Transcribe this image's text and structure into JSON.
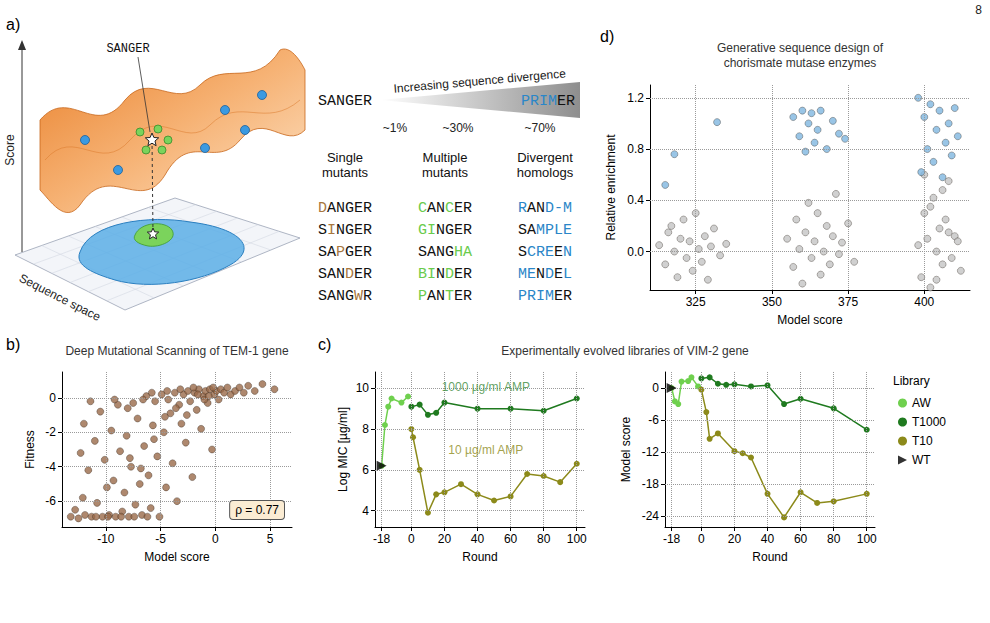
{
  "page_number": "8",
  "panel_a": {
    "panel_label": "a)",
    "landscape": {
      "pointer_label": "SANGER",
      "axis_label": "Score",
      "plane_label": "Sequence space"
    },
    "divergence": {
      "start": "SANGER",
      "title": "Increasing sequence divergence",
      "end": [
        {
          "text": "PRIM",
          "color": "#2a86c8"
        },
        {
          "text": "ER"
        }
      ],
      "marks": [
        "~1%",
        "~30%",
        "~70%"
      ]
    },
    "columns": [
      {
        "title": "Single mutants",
        "words": [
          [
            {
              "text": "D",
              "color": "#a8773e"
            },
            {
              "text": "ANGER"
            }
          ],
          [
            {
              "text": "S"
            },
            {
              "text": "I",
              "color": "#a8773e"
            },
            {
              "text": "NGER"
            }
          ],
          [
            {
              "text": "SA"
            },
            {
              "text": "P",
              "color": "#a8773e"
            },
            {
              "text": "GER"
            }
          ],
          [
            {
              "text": "SAN"
            },
            {
              "text": "D",
              "color": "#a8773e"
            },
            {
              "text": "ER"
            }
          ],
          [
            {
              "text": "SANG"
            },
            {
              "text": "W",
              "color": "#a8773e"
            },
            {
              "text": "R"
            }
          ]
        ]
      },
      {
        "title": "Multiple mutants",
        "words": [
          [
            {
              "text": "C",
              "color": "#6acb4c"
            },
            {
              "text": "AN"
            },
            {
              "text": "C",
              "color": "#6acb4c"
            },
            {
              "text": "ER"
            }
          ],
          [
            {
              "text": "GI",
              "color": "#6acb4c"
            },
            {
              "text": "NGER"
            }
          ],
          [
            {
              "text": "SANG"
            },
            {
              "text": "HA",
              "color": "#6acb4c"
            }
          ],
          [
            {
              "text": "BI",
              "color": "#6acb4c"
            },
            {
              "text": "N"
            },
            {
              "text": "D",
              "color": "#6acb4c"
            },
            {
              "text": "ER"
            }
          ],
          [
            {
              "text": "P",
              "color": "#6acb4c"
            },
            {
              "text": "AN"
            },
            {
              "text": "T",
              "color": "#6acb4c"
            },
            {
              "text": "ER"
            }
          ]
        ]
      },
      {
        "title": "Divergent homologs",
        "words": [
          [
            {
              "text": "R",
              "color": "#2a86c8"
            },
            {
              "text": "AN"
            },
            {
              "text": "D-M",
              "color": "#2a86c8"
            }
          ],
          [
            {
              "text": "SA"
            },
            {
              "text": "MPLE",
              "color": "#2a86c8"
            }
          ],
          [
            {
              "text": "S"
            },
            {
              "text": "CRE",
              "color": "#2a86c8"
            },
            {
              "text": "E"
            },
            {
              "text": "N",
              "color": "#2a86c8"
            }
          ],
          [
            {
              "text": "ME",
              "color": "#2a86c8"
            },
            {
              "text": "N"
            },
            {
              "text": "D",
              "color": "#2a86c8"
            },
            {
              "text": "E"
            },
            {
              "text": "L",
              "color": "#2a86c8"
            }
          ],
          [
            {
              "text": "PRIM",
              "color": "#2a86c8"
            },
            {
              "text": "ER"
            }
          ]
        ]
      }
    ]
  },
  "chart_data": [
    {
      "panel_label": "b)",
      "type": "scatter",
      "title": "Deep Mutational Scanning of TEM-1 gene",
      "xlabel": "Model score",
      "ylabel": "Fitness",
      "xlim": [
        -14,
        7
      ],
      "ylim": [
        -7.5,
        1.5
      ],
      "xticks": [
        -10,
        -5,
        0,
        5
      ],
      "yticks": [
        -6,
        -4,
        -2,
        0
      ],
      "grid": true,
      "color": "#9a6a4a",
      "annotation": "ρ = 0.77",
      "x": [
        -13.2,
        -12.8,
        -12.5,
        -12.1,
        -11.9,
        -11.6,
        -11.3,
        -11.0,
        -10.8,
        -10.5,
        -10.3,
        -10.1,
        -9.9,
        -9.7,
        -9.5,
        -9.3,
        -9.1,
        -8.9,
        -8.7,
        -8.5,
        -8.3,
        -8.1,
        -7.9,
        -7.7,
        -7.5,
        -7.3,
        -7.1,
        -6.9,
        -6.7,
        -6.5,
        -6.3,
        -6.1,
        -5.9,
        -5.7,
        -5.5,
        -5.3,
        -5.1,
        -4.9,
        -4.7,
        -4.5,
        -4.3,
        -4.1,
        -3.9,
        -3.7,
        -3.5,
        -3.3,
        -3.1,
        -2.9,
        -2.7,
        -2.5,
        -2.3,
        -2.1,
        -1.9,
        -1.7,
        -1.5,
        -1.3,
        -1.1,
        -0.9,
        -0.7,
        -0.5,
        -0.3,
        -0.1,
        0.1,
        0.3,
        0.5,
        0.8,
        1.1,
        1.4,
        1.8,
        2.2,
        2.6,
        3.0,
        3.6,
        4.3,
        5.4,
        -12.0,
        -11.4,
        -9.8,
        -8.6,
        -7.4,
        -6.2,
        -10.9,
        -12.3,
        -9.2,
        -8.0,
        -6.6,
        -5.8,
        -4.4,
        -3.2,
        -2.0,
        -1.0,
        -0.2,
        -7.8,
        -6.8,
        -5.6,
        -4.6,
        -3.6,
        -2.6,
        -1.6,
        -0.6
      ],
      "values": [
        -6.9,
        -6.5,
        -7.0,
        -5.8,
        -6.8,
        -4.2,
        -6.9,
        -2.5,
        -6.1,
        -0.8,
        -6.9,
        -3.6,
        -5.2,
        -6.8,
        -1.9,
        -4.8,
        -6.9,
        -0.4,
        -3.1,
        -6.6,
        -5.5,
        -2.2,
        -6.9,
        -4.0,
        -0.3,
        -6.2,
        -1.2,
        -5.0,
        -6.8,
        -2.8,
        0.1,
        -4.5,
        -6.4,
        -1.6,
        -0.2,
        -3.4,
        -6.9,
        0.2,
        -2.0,
        -5.2,
        -0.1,
        -0.9,
        -3.8,
        0.3,
        -6.0,
        -0.4,
        -1.5,
        0.2,
        -2.6,
        0.4,
        -0.2,
        -4.6,
        0.3,
        -0.7,
        0.5,
        -1.8,
        0.1,
        0.4,
        -0.3,
        0.5,
        -3.0,
        0.2,
        0.4,
        -0.1,
        0.5,
        0.3,
        0.6,
        0.2,
        0.4,
        0.6,
        0.3,
        0.7,
        0.4,
        0.8,
        0.5,
        -1.5,
        -0.2,
        -6.9,
        -6.9,
        -6.9,
        -6.9,
        -6.9,
        -3.2,
        -0.1,
        -0.6,
        -0.1,
        0.3,
        0.4,
        0.5,
        0.6,
        -0.1,
        0.6,
        -3.5,
        -4.1,
        -2.4,
        -1.1,
        -0.6,
        -1.0,
        0.2,
        0.1
      ]
    },
    {
      "panel_label": "c)",
      "type": "line",
      "title": "Experimentally evolved libraries of VIM-2 gene",
      "legend": "right",
      "legend_title": "Library",
      "grid": true,
      "plots": [
        {
          "xlabel": "Round",
          "ylabel": "Log MIC [µg/ml]",
          "xlim": [
            -22,
            105
          ],
          "ylim": [
            3.2,
            10.8
          ],
          "xticks": [
            -18,
            0,
            20,
            40,
            60,
            80,
            100
          ],
          "yticks": [
            4,
            6,
            8,
            10
          ],
          "annotations": [
            {
              "text": "1000 µg/ml AMP",
              "x": 45,
              "y": 10.05,
              "color": "#3a8a3a"
            },
            {
              "text": "10 µg/ml AMP",
              "x": 45,
              "y": 7.0,
              "color": "#8c8a1a"
            }
          ],
          "series": [
            {
              "name": "AW",
              "color": "#6fd04e",
              "marker": "circle",
              "x": [
                -18,
                -16,
                -14,
                -12,
                -6,
                -2
              ],
              "values": [
                6.2,
                8.2,
                9.1,
                9.5,
                9.3,
                9.6
              ]
            },
            {
              "name": "T1000",
              "color": "#1f7a1f",
              "marker": "circle",
              "x": [
                0,
                5,
                10,
                15,
                20,
                40,
                60,
                80,
                100
              ],
              "values": [
                9.1,
                9.2,
                8.7,
                8.8,
                9.3,
                9.0,
                9.0,
                8.9,
                9.5
              ]
            },
            {
              "name": "T10",
              "color": "#8c8a1a",
              "marker": "circle",
              "x": [
                0,
                1,
                5,
                10,
                15,
                20,
                30,
                40,
                50,
                60,
                70,
                80,
                90,
                100
              ],
              "values": [
                8.0,
                7.6,
                6.0,
                3.9,
                4.8,
                4.9,
                5.3,
                4.8,
                4.5,
                4.7,
                5.8,
                5.7,
                5.4,
                6.3
              ]
            },
            {
              "name": "WT",
              "type": "scatter",
              "color": "#000000",
              "marker": "triangle-right",
              "x": [
                -18
              ],
              "values": [
                6.2
              ]
            }
          ]
        },
        {
          "xlabel": "Round",
          "ylabel": "Model score",
          "xlim": [
            -22,
            105
          ],
          "ylim": [
            -26,
            3
          ],
          "xticks": [
            -18,
            0,
            20,
            40,
            60,
            80,
            100
          ],
          "yticks": [
            -24,
            -18,
            -12,
            -6,
            0
          ],
          "series": [
            {
              "name": "AW",
              "color": "#6fd04e",
              "marker": "circle",
              "x": [
                -18,
                -16,
                -14,
                -12,
                -8,
                -6,
                -2
              ],
              "values": [
                0,
                -2.5,
                -3.0,
                1.2,
                1.3,
                2.0,
                0.3
              ]
            },
            {
              "name": "T1000",
              "color": "#1f7a1f",
              "marker": "circle",
              "x": [
                0,
                5,
                10,
                15,
                20,
                30,
                40,
                50,
                60,
                80,
                100
              ],
              "values": [
                1.8,
                2.0,
                0.8,
                0.6,
                0.7,
                0.3,
                0.5,
                -3.0,
                -2.0,
                -3.8,
                -7.8
              ]
            },
            {
              "name": "T10",
              "color": "#8c8a1a",
              "marker": "circle",
              "x": [
                0,
                3,
                5,
                10,
                20,
                25,
                30,
                40,
                50,
                60,
                70,
                80,
                100
              ],
              "values": [
                -0.3,
                -4.5,
                -9.5,
                -8.5,
                -11.8,
                -12.2,
                -13.0,
                -19.8,
                -24.2,
                -19.5,
                -21.5,
                -21.2,
                -19.8
              ]
            },
            {
              "name": "WT",
              "type": "scatter",
              "color": "#000000",
              "marker": "triangle-right",
              "x": [
                -18
              ],
              "values": [
                0
              ]
            }
          ]
        }
      ]
    },
    {
      "panel_label": "d)",
      "type": "scatter",
      "title": "Generative sequence design of chorismate mutase enzymes",
      "xlabel": "Model score",
      "ylabel": "Relative enrichment",
      "xlim": [
        310,
        415
      ],
      "ylim": [
        -0.3,
        1.3
      ],
      "xticks": [
        325,
        350,
        375,
        400
      ],
      "yticks": [
        {
          "value": 0,
          "label": "0.0"
        },
        0.4,
        0.8,
        1.2
      ],
      "grid": true,
      "series": [
        {
          "color": "#c4c4c4",
          "x": [
            313,
            315,
            316,
            318,
            319,
            320,
            321,
            322,
            323,
            324,
            325,
            326,
            327,
            328,
            329,
            330,
            331,
            333,
            335,
            317,
            355,
            357,
            358,
            359,
            360,
            361,
            362,
            363,
            364,
            365,
            366,
            367,
            368,
            369,
            370,
            371,
            372,
            373,
            375,
            377,
            398,
            399,
            400,
            401,
            402,
            403,
            404,
            405,
            406,
            407,
            408,
            409,
            410,
            411,
            412,
            400,
            402,
            404,
            406,
            408
          ],
          "values": [
            0.05,
            -0.1,
            0.15,
            0,
            -0.2,
            0.1,
            0.25,
            -0.05,
            0.08,
            -0.15,
            0.3,
            0.02,
            -0.08,
            0.12,
            -0.22,
            0.04,
            0.18,
            -0.03,
            0.06,
            0.2,
            0.1,
            -0.12,
            0.25,
            0.02,
            -0.25,
            0.15,
            0.38,
            -0.05,
            0.08,
            0.3,
            -0.18,
            0,
            0.2,
            -0.1,
            0.12,
            0.45,
            -0.02,
            0.07,
            0.22,
            -0.08,
            0.05,
            -0.2,
            0.3,
            0.1,
            -0.28,
            0.42,
            0,
            0.18,
            -0.1,
            0.25,
            0.55,
            -0.05,
            0.12,
            0.08,
            -0.15,
            0.6,
            0.35,
            -0.22,
            0.48,
            0.15
          ]
        },
        {
          "color": "#7fb6e0",
          "x": [
            318,
            315,
            332,
            357,
            359,
            360,
            361,
            362,
            363,
            364,
            365,
            366,
            368,
            370,
            372,
            374,
            398,
            399,
            400,
            401,
            402,
            403,
            404,
            405,
            406,
            407,
            408,
            409,
            410,
            411
          ],
          "values": [
            0.76,
            0.52,
            1.01,
            1.05,
            0.9,
            1.1,
            0.78,
            1.0,
            1.08,
            0.85,
            0.95,
            1.1,
            0.8,
            1.02,
            0.92,
            0.88,
            1.2,
            0.62,
            1.05,
            0.8,
            1.15,
            0.7,
            0.95,
            1.1,
            0.58,
            0.85,
            1.0,
            0.75,
            1.12,
            0.9
          ]
        }
      ]
    }
  ]
}
